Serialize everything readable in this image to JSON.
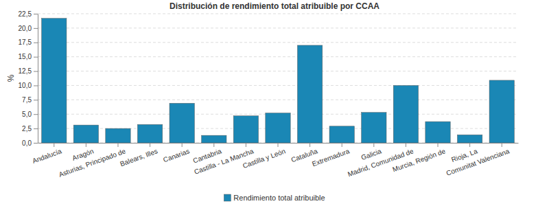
{
  "chart_data": {
    "type": "bar",
    "title": "Distribución de rendimiento total atribuible por CCAA",
    "y_label": "%",
    "categories": [
      "Andalucía",
      "Aragón",
      "Asturias, Principado de",
      "Balears, Illes",
      "Canarias",
      "Cantabria",
      "Castilla - La Mancha",
      "Castilla y León",
      "Cataluña",
      "Extremadura",
      "Galicia",
      "Madrid, Comunidad de",
      "Murcia, Región de",
      "Rioja, La",
      "Comunitat Valenciana"
    ],
    "series": [
      {
        "name": "Rendimiento total atribuible",
        "color": "#1a87b5",
        "values": [
          21.7,
          3.1,
          2.5,
          3.2,
          6.9,
          1.3,
          4.7,
          5.2,
          17.0,
          2.9,
          5.3,
          10.0,
          3.7,
          1.4,
          10.9
        ]
      }
    ],
    "ylim": [
      0,
      22.5
    ],
    "yticks": [
      {
        "value": 0,
        "label": "0,0"
      },
      {
        "value": 2.5,
        "label": "2,5"
      },
      {
        "value": 5,
        "label": "5,0"
      },
      {
        "value": 7.5,
        "label": "7,5"
      },
      {
        "value": 10,
        "label": "10,0"
      },
      {
        "value": 12.5,
        "label": "12,5"
      },
      {
        "value": 15,
        "label": "15,0"
      },
      {
        "value": 17.5,
        "label": "17,5"
      },
      {
        "value": 20,
        "label": "20,0"
      },
      {
        "value": 22.5,
        "label": "22,5"
      }
    ],
    "grid": true,
    "legend": "bottom"
  }
}
